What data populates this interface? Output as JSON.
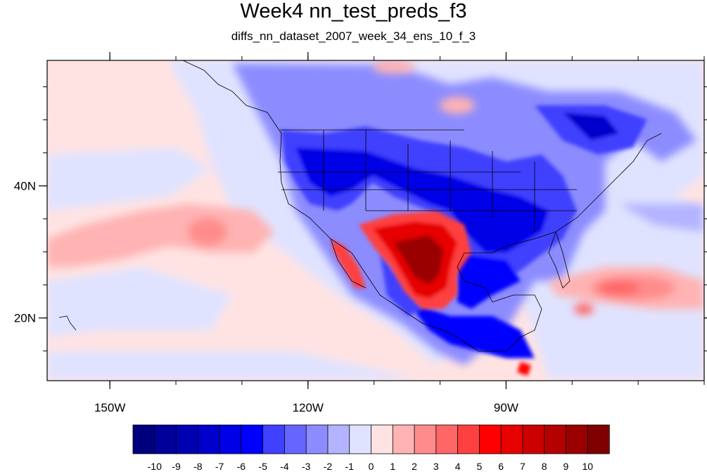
{
  "title": "Week4 nn_test_preds_f3",
  "subtitle": "diffs_nn_dataset_2007_week_34_ens_10_f_3",
  "map": {
    "x_ticks": [
      {
        "value": -150,
        "label": "150W"
      },
      {
        "value": -120,
        "label": "120W"
      },
      {
        "value": -90,
        "label": "90W"
      }
    ],
    "y_ticks": [
      {
        "value": 40,
        "label": "40N"
      },
      {
        "value": 20,
        "label": "20N"
      }
    ],
    "lon_range": [
      -159.5,
      -60
    ],
    "lat_range": [
      10.5,
      59
    ]
  },
  "colorbar": {
    "labels": [
      "-10",
      "-9",
      "-8",
      "-7",
      "-6",
      "-5",
      "-4",
      "-3",
      "-2",
      "-1",
      "0",
      "1",
      "2",
      "3",
      "4",
      "5",
      "6",
      "7",
      "8",
      "9",
      "10"
    ],
    "colors": [
      "#00007f",
      "#00009a",
      "#0000b3",
      "#0000cc",
      "#0000e6",
      "#0000ff",
      "#4040ff",
      "#6666ff",
      "#8c8cff",
      "#b3b3ff",
      "#e0e3ff",
      "#ffe3e3",
      "#ffb3b3",
      "#ff8c8c",
      "#ff6666",
      "#ff4040",
      "#ff0000",
      "#e60000",
      "#cc0000",
      "#b30000",
      "#9a0000",
      "#7f0000"
    ]
  }
}
